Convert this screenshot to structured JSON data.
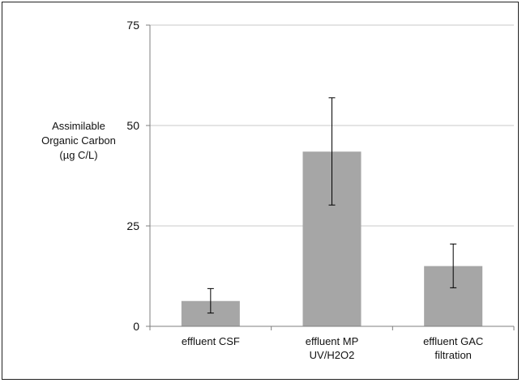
{
  "chart_data": {
    "type": "bar",
    "title": "",
    "xlabel": "",
    "ylabel_lines": [
      "Assimilable",
      "Organic Carbon",
      "(µg C/L)"
    ],
    "categories": [
      [
        "effluent CSF"
      ],
      [
        "effluent MP",
        "UV/H2O2"
      ],
      [
        "effluent GAC",
        "filtration"
      ]
    ],
    "values": [
      6.3,
      43.5,
      15.0
    ],
    "error_low": [
      3.3,
      30.2,
      9.6
    ],
    "error_high": [
      9.4,
      56.9,
      20.5
    ],
    "ylim": [
      0,
      75
    ],
    "yticks": [
      0,
      25,
      50,
      75
    ],
    "grid": true,
    "legend": "none",
    "bar_color": "#a6a6a6",
    "grid_color": "#c8c8c8",
    "axis_color": "#7f7f7f"
  }
}
